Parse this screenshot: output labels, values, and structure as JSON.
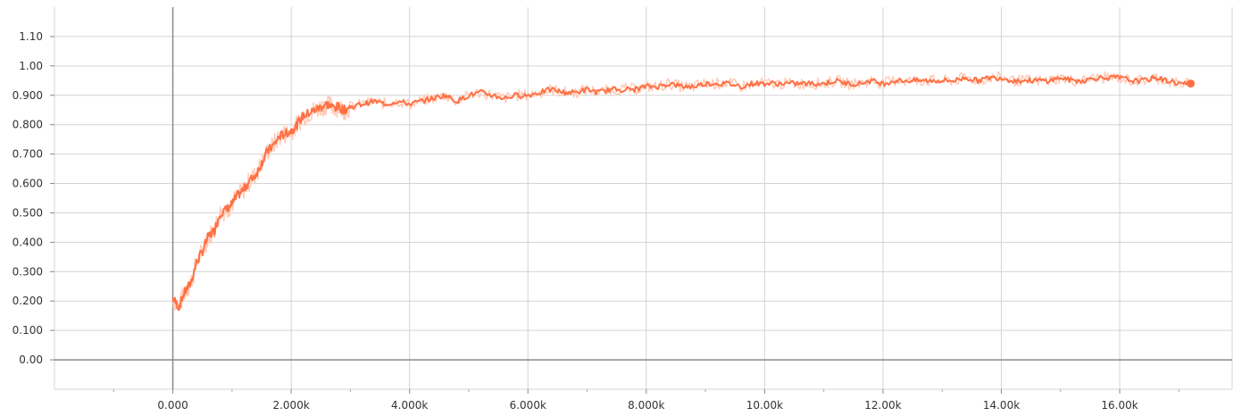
{
  "chart_data": {
    "type": "line",
    "title": "",
    "xlabel": "",
    "ylabel": "",
    "xlim": [
      -2000,
      17900
    ],
    "ylim": [
      -0.1,
      1.2
    ],
    "grid": true,
    "x_ticks": [
      "0.000",
      "2.000k",
      "4.000k",
      "6.000k",
      "8.000k",
      "10.00k",
      "12.00k",
      "14.00k",
      "16.00k"
    ],
    "x_tick_values": [
      0,
      2000,
      4000,
      6000,
      8000,
      10000,
      12000,
      14000,
      16000
    ],
    "y_ticks": [
      "0.00",
      "0.100",
      "0.200",
      "0.300",
      "0.400",
      "0.500",
      "0.600",
      "0.700",
      "0.800",
      "0.900",
      "1.00",
      "1.10"
    ],
    "y_tick_values": [
      0,
      0.1,
      0.2,
      0.3,
      0.4,
      0.5,
      0.6,
      0.7,
      0.8,
      0.9,
      1.0,
      1.1
    ],
    "colors": {
      "smoothed": "#ff7043",
      "raw": "#ffcbb8",
      "grid": "#d4d4d4",
      "axis": "#8a8a8a"
    },
    "series": [
      {
        "x": [
          0,
          100,
          200,
          300,
          400,
          500,
          600,
          700,
          800,
          900,
          1000,
          1100,
          1200,
          1300,
          1400,
          1500,
          1600,
          1700,
          1800,
          1900,
          2000,
          2100,
          2200,
          2300,
          2400,
          2500,
          2600,
          2700,
          2800,
          2900,
          3000,
          3200,
          3400,
          3600,
          3800,
          4000,
          4200,
          4400,
          4600,
          4800,
          5000,
          5200,
          5400,
          5600,
          5800,
          6000,
          6200,
          6400,
          6600,
          6800,
          7000,
          7200,
          7400,
          7600,
          7800,
          8000,
          8200,
          8400,
          8600,
          8800,
          9000,
          9200,
          9400,
          9600,
          9800,
          10000,
          10200,
          10400,
          10600,
          10800,
          11000,
          11200,
          11400,
          11600,
          11800,
          12000,
          12200,
          12400,
          12600,
          12800,
          13000,
          13200,
          13400,
          13600,
          13800,
          14000,
          14200,
          14400,
          14600,
          14800,
          15000,
          15200,
          15400,
          15600,
          15800,
          16000,
          16200,
          16400,
          16600,
          16800,
          17000,
          17200
        ],
        "values": [
          0.21,
          0.18,
          0.23,
          0.26,
          0.33,
          0.37,
          0.42,
          0.44,
          0.5,
          0.51,
          0.53,
          0.56,
          0.58,
          0.61,
          0.63,
          0.67,
          0.71,
          0.73,
          0.76,
          0.77,
          0.78,
          0.8,
          0.83,
          0.84,
          0.85,
          0.86,
          0.87,
          0.86,
          0.86,
          0.85,
          0.86,
          0.87,
          0.88,
          0.87,
          0.88,
          0.87,
          0.88,
          0.89,
          0.9,
          0.88,
          0.9,
          0.91,
          0.9,
          0.89,
          0.9,
          0.9,
          0.91,
          0.92,
          0.91,
          0.91,
          0.92,
          0.91,
          0.92,
          0.92,
          0.92,
          0.93,
          0.93,
          0.94,
          0.93,
          0.93,
          0.94,
          0.94,
          0.94,
          0.93,
          0.94,
          0.94,
          0.94,
          0.94,
          0.94,
          0.94,
          0.94,
          0.95,
          0.94,
          0.94,
          0.95,
          0.94,
          0.95,
          0.95,
          0.95,
          0.95,
          0.95,
          0.95,
          0.96,
          0.95,
          0.96,
          0.96,
          0.95,
          0.95,
          0.95,
          0.95,
          0.96,
          0.95,
          0.95,
          0.96,
          0.96,
          0.96,
          0.95,
          0.95,
          0.96,
          0.95,
          0.94,
          0.94
        ]
      }
    ]
  }
}
